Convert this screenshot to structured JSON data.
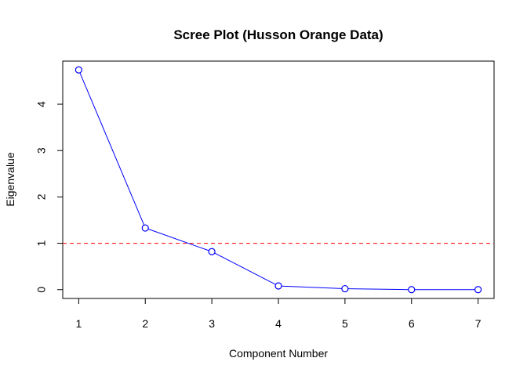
{
  "chart_data": {
    "type": "line",
    "title": "Scree Plot (Husson Orange Data)",
    "xlabel": "Component Number",
    "ylabel": "Eigenvalue",
    "x": [
      1,
      2,
      3,
      4,
      5,
      6,
      7
    ],
    "series": [
      {
        "values": [
          4.74,
          1.33,
          0.82,
          0.08,
          0.02,
          0.0,
          0.0
        ],
        "color": "#0000ff",
        "marker": "open-circle"
      }
    ],
    "reference_line": {
      "y": 1,
      "color": "#ff0000",
      "style": "dashed"
    },
    "xticks": [
      "1",
      "2",
      "3",
      "4",
      "5",
      "6",
      "7"
    ],
    "yticks": [
      "0",
      "1",
      "2",
      "3",
      "4"
    ],
    "xlim": [
      0.76,
      7.24
    ],
    "ylim": [
      -0.19,
      4.93
    ],
    "grid": false,
    "legend": "none"
  }
}
